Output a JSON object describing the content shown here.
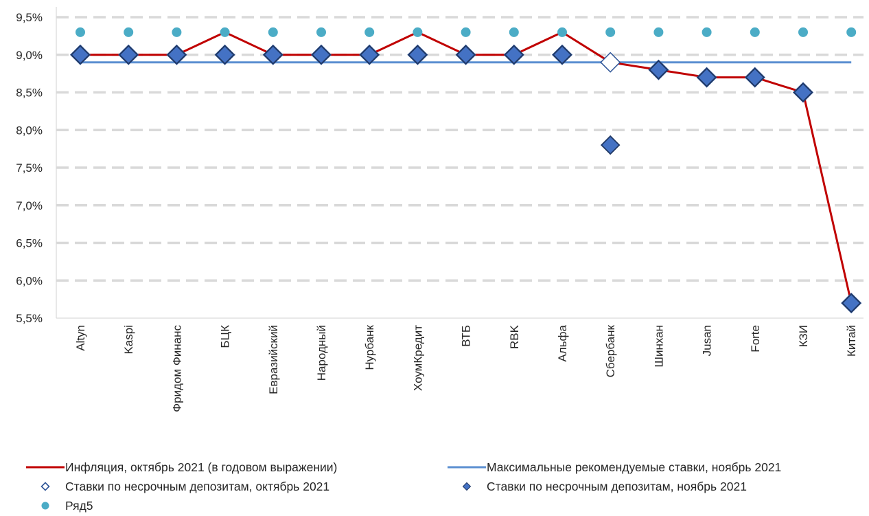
{
  "chart_data": {
    "type": "line",
    "categories": [
      "Altyn",
      "Kaspi",
      "Фридом Финанс",
      "БЦК",
      "Евразийский",
      "Народный",
      "Нурбанк",
      "ХоумКредит",
      "ВТБ",
      "RBK",
      "Альфа",
      "Сбербанк",
      "Шинхан",
      "Jusan",
      "Forte",
      "КЗИ",
      "Китай"
    ],
    "y_ticks": [
      "5,5%",
      "6,0%",
      "6,5%",
      "7,0%",
      "7,5%",
      "8,0%",
      "8,5%",
      "9,0%",
      "9,5%"
    ],
    "ylim": [
      5.5,
      9.5
    ],
    "grid": "horizontal dashed",
    "legend_position": "bottom",
    "series": [
      {
        "name": "Инфляция, октябрь 2021 (в годовом выражении)",
        "kind": "line",
        "color": "#C00000",
        "values": [
          9.0,
          9.0,
          9.0,
          9.3,
          9.0,
          9.0,
          9.0,
          9.3,
          9.0,
          9.0,
          9.3,
          8.9,
          8.8,
          8.7,
          8.7,
          8.5,
          5.7
        ]
      },
      {
        "name": "Максимальные рекомендуемые ставки, ноябрь 2021",
        "kind": "line",
        "color": "#5B8FD1",
        "values": [
          8.9,
          8.9,
          8.9,
          8.9,
          8.9,
          8.9,
          8.9,
          8.9,
          8.9,
          8.9,
          8.9,
          8.9,
          8.9,
          8.9,
          8.9,
          8.9,
          8.9
        ]
      },
      {
        "name": "Ставки по несрочным депозитам, октябрь 2021",
        "kind": "hollow-diamond",
        "color": "#2F5597",
        "values": [
          9.0,
          9.0,
          9.0,
          9.0,
          9.0,
          9.0,
          9.0,
          9.0,
          9.0,
          9.0,
          9.0,
          8.9,
          8.8,
          8.7,
          8.7,
          8.5,
          5.7
        ]
      },
      {
        "name": "Ставки по несрочным депозитам, ноябрь 2021",
        "kind": "filled-diamond",
        "color": "#4472C4",
        "values": [
          9.0,
          9.0,
          9.0,
          9.0,
          9.0,
          9.0,
          9.0,
          9.0,
          9.0,
          9.0,
          9.0,
          7.8,
          8.8,
          8.7,
          8.7,
          8.5,
          5.7
        ]
      },
      {
        "name": "Ряд5",
        "kind": "dot",
        "color": "#4BACC6",
        "values": [
          9.3,
          9.3,
          9.3,
          9.3,
          9.3,
          9.3,
          9.3,
          9.3,
          9.3,
          9.3,
          9.3,
          9.3,
          9.3,
          9.3,
          9.3,
          9.3,
          9.3
        ]
      }
    ]
  }
}
